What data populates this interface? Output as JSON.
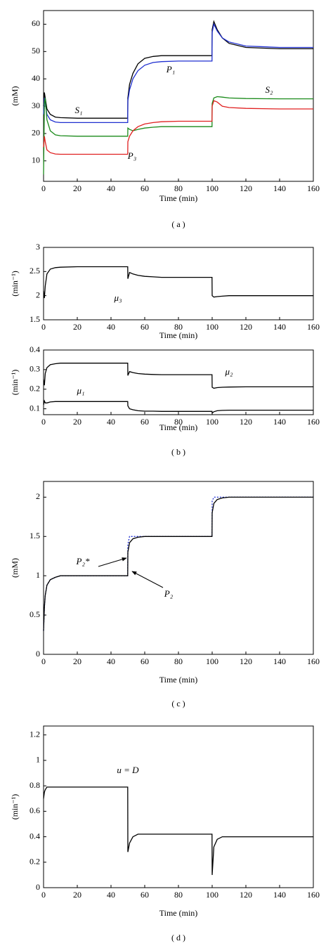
{
  "chart_data": [
    {
      "type": "line",
      "ylabel": "(mM)",
      "xlabel": "Time (min)",
      "x": [
        0,
        0.5,
        1,
        2,
        4,
        7,
        10,
        20,
        30,
        40,
        49.9,
        50,
        51,
        53,
        56,
        60,
        65,
        70,
        80,
        90,
        99.9,
        100,
        101,
        103,
        106,
        110,
        120,
        140,
        160
      ],
      "xlim": [
        0,
        160
      ],
      "xticks": [
        0,
        20,
        40,
        60,
        80,
        100,
        120,
        140,
        160
      ],
      "ylim": [
        2.5,
        65
      ],
      "yticks": [
        10,
        20,
        30,
        40,
        50,
        60
      ],
      "series": [
        {
          "name": "S₁",
          "color": "#000000",
          "values": [
            30,
            35,
            33,
            29,
            27,
            26,
            25.8,
            25.6,
            25.6,
            25.6,
            25.6,
            33,
            38,
            42,
            45.5,
            47.5,
            48.2,
            48.5,
            48.5,
            48.5,
            48.5,
            58,
            61,
            58,
            55,
            53,
            51.5,
            51,
            51
          ]
        },
        {
          "name": "P₁",
          "color": "#1f2fd0",
          "values": [
            27,
            33,
            31,
            27,
            25,
            24.2,
            24,
            24,
            24,
            24,
            24,
            32,
            36,
            40,
            43,
            45,
            46,
            46.3,
            46.5,
            46.5,
            46.5,
            57,
            60,
            57.5,
            55,
            53.5,
            52,
            51.5,
            51.5
          ]
        },
        {
          "name": "S₂",
          "color": "#1a8a1a",
          "values": [
            5,
            31,
            33,
            25,
            21,
            19.5,
            19.2,
            19,
            19,
            19,
            19,
            22,
            21.5,
            21,
            21.5,
            22,
            22.3,
            22.5,
            22.5,
            22.5,
            22.5,
            31,
            33,
            33.5,
            33.3,
            33,
            32.8,
            32.7,
            32.7
          ]
        },
        {
          "name": "P₃",
          "color": "#e02020",
          "values": [
            15,
            19,
            17,
            14,
            13,
            12.5,
            12.4,
            12.4,
            12.4,
            12.4,
            12.4,
            17,
            19,
            21,
            22.5,
            23.5,
            24,
            24.3,
            24.5,
            24.5,
            24.5,
            30,
            32,
            31.5,
            30,
            29.5,
            29.2,
            29,
            29
          ]
        }
      ],
      "caption": "( a )"
    },
    {
      "type": "line",
      "ylabel": "(min⁻¹)",
      "xlabel": "Time (min)",
      "x": [
        0,
        0.5,
        1,
        2,
        4,
        7,
        10,
        20,
        30,
        40,
        49.9,
        50,
        51,
        53,
        56,
        60,
        65,
        70,
        80,
        90,
        99.9,
        100,
        101,
        103,
        106,
        110,
        120,
        140,
        160
      ],
      "xlim": [
        0,
        160
      ],
      "xticks": [
        0,
        20,
        40,
        60,
        80,
        100,
        120,
        140,
        160
      ],
      "ylim": [
        1.5,
        3
      ],
      "yticks": [
        1.5,
        2,
        2.5,
        3
      ],
      "series": [
        {
          "name": "μ₃",
          "color": "#000000",
          "values": [
            2.1,
            1.95,
            2.2,
            2.45,
            2.55,
            2.58,
            2.59,
            2.6,
            2.6,
            2.6,
            2.6,
            2.35,
            2.48,
            2.45,
            2.42,
            2.4,
            2.39,
            2.38,
            2.38,
            2.38,
            2.38,
            2.0,
            1.97,
            1.98,
            1.99,
            2.0,
            2.0,
            2.0,
            2.0
          ]
        }
      ]
    },
    {
      "type": "line",
      "ylabel": "(min⁻¹)",
      "xlabel": "Time (min)",
      "x": [
        0,
        0.5,
        1,
        2,
        4,
        7,
        10,
        20,
        30,
        40,
        49.9,
        50,
        51,
        53,
        56,
        60,
        65,
        70,
        80,
        90,
        99.9,
        100,
        101,
        103,
        106,
        110,
        120,
        140,
        160
      ],
      "xlim": [
        0,
        160
      ],
      "xticks": [
        0,
        20,
        40,
        60,
        80,
        100,
        120,
        140,
        160
      ],
      "ylim": [
        0.07,
        0.4
      ],
      "yticks": [
        0.1,
        0.2,
        0.3,
        0.4
      ],
      "series": [
        {
          "name": "μ₂",
          "color": "#000000",
          "values": [
            0.25,
            0.22,
            0.28,
            0.31,
            0.325,
            0.33,
            0.333,
            0.333,
            0.333,
            0.333,
            0.333,
            0.27,
            0.29,
            0.285,
            0.28,
            0.277,
            0.275,
            0.274,
            0.274,
            0.274,
            0.274,
            0.21,
            0.205,
            0.208,
            0.21,
            0.211,
            0.212,
            0.212,
            0.212
          ]
        },
        {
          "name": "μ₁",
          "color": "#000000",
          "values": [
            0.12,
            0.14,
            0.13,
            0.13,
            0.135,
            0.137,
            0.137,
            0.137,
            0.137,
            0.137,
            0.137,
            0.115,
            0.1,
            0.095,
            0.09,
            0.088,
            0.088,
            0.087,
            0.087,
            0.087,
            0.087,
            0.078,
            0.085,
            0.09,
            0.092,
            0.093,
            0.093,
            0.093,
            0.093
          ]
        }
      ],
      "caption": "( b )"
    },
    {
      "type": "line",
      "ylabel": "(mM)",
      "xlabel": "Time (min)",
      "x": [
        0,
        0.5,
        1,
        2,
        4,
        7,
        10,
        20,
        30,
        40,
        49.9,
        50,
        51,
        53,
        56,
        60,
        65,
        70,
        80,
        90,
        99.9,
        100,
        101,
        103,
        106,
        110,
        120,
        140,
        160
      ],
      "xlim": [
        0,
        160
      ],
      "xticks": [
        0,
        20,
        40,
        60,
        80,
        100,
        120,
        140,
        160
      ],
      "ylim": [
        0,
        2.2
      ],
      "yticks": [
        0,
        0.5,
        1,
        1.5,
        2
      ],
      "series": [
        {
          "name": "P₂*",
          "color": "#1f2fd0",
          "dash": true,
          "values": [
            0.3,
            0.6,
            0.75,
            0.88,
            0.95,
            0.98,
            1,
            1,
            1,
            1,
            1,
            1.4,
            1.5,
            1.5,
            1.5,
            1.5,
            1.5,
            1.5,
            1.5,
            1.5,
            1.5,
            1.95,
            2,
            2,
            2,
            2,
            2,
            2,
            2
          ]
        },
        {
          "name": "P₂",
          "color": "#000000",
          "values": [
            0.3,
            0.6,
            0.75,
            0.88,
            0.95,
            0.98,
            1,
            1,
            1,
            1,
            1,
            1.3,
            1.42,
            1.47,
            1.49,
            1.5,
            1.5,
            1.5,
            1.5,
            1.5,
            1.5,
            1.8,
            1.92,
            1.97,
            1.99,
            2,
            2,
            2,
            2
          ]
        }
      ],
      "caption": "( c )"
    },
    {
      "type": "line",
      "ylabel": "(min⁻¹)",
      "xlabel": "Time (min)",
      "x": [
        0,
        0.5,
        1,
        2,
        4,
        7,
        10,
        20,
        30,
        40,
        49.9,
        50,
        51,
        53,
        56,
        60,
        65,
        70,
        80,
        90,
        99.9,
        100,
        101,
        103,
        106,
        110,
        120,
        140,
        160
      ],
      "xlim": [
        0,
        160
      ],
      "xticks": [
        0,
        20,
        40,
        60,
        80,
        100,
        120,
        140,
        160
      ],
      "ylim": [
        0,
        1.27
      ],
      "yticks": [
        0,
        0.2,
        0.4,
        0.6,
        0.8,
        1,
        1.2
      ],
      "series": [
        {
          "name": "u = D",
          "color": "#000000",
          "values": [
            0.7,
            0.75,
            0.77,
            0.79,
            0.79,
            0.79,
            0.79,
            0.79,
            0.79,
            0.79,
            0.79,
            0.28,
            0.35,
            0.4,
            0.42,
            0.42,
            0.42,
            0.42,
            0.42,
            0.42,
            0.42,
            0.1,
            0.32,
            0.38,
            0.4,
            0.4,
            0.4,
            0.4,
            0.4
          ]
        }
      ],
      "caption": "( d )"
    }
  ]
}
